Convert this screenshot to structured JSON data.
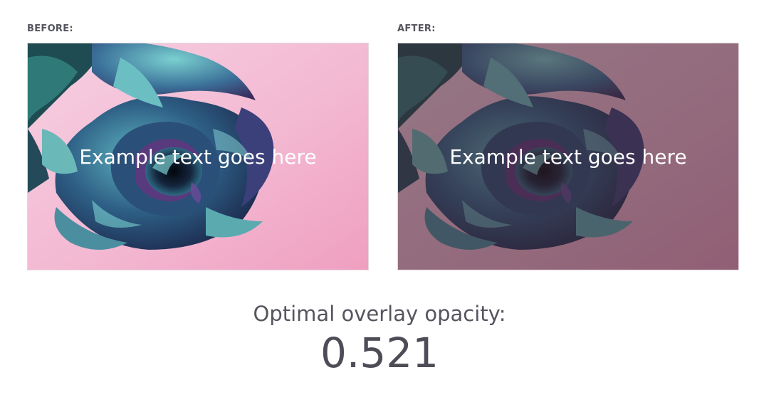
{
  "before": {
    "label": "BEFORE:",
    "caption": "Example text goes here"
  },
  "after": {
    "label": "AFTER:",
    "caption": "Example text goes here"
  },
  "result": {
    "title": "Optimal overlay opacity:",
    "value": "0.521",
    "opacity": 0.521
  },
  "colors": {
    "background_pink": "#f4bcd4",
    "overlay": "#3c2530",
    "text_gray": "#56555f"
  }
}
